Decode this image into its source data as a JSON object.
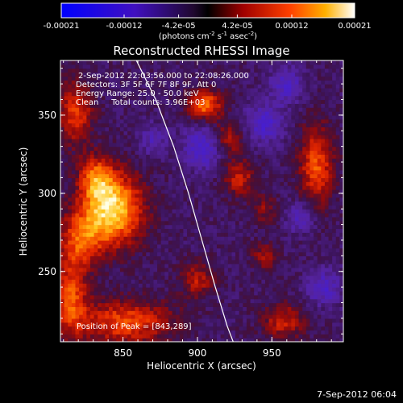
{
  "chart_data": {
    "type": "heatmap",
    "title": "Reconstructed RHESSI Image",
    "xlabel": "Heliocentric X (arcsec)",
    "ylabel": "Heliocentric Y (arcsec)",
    "xlim": [
      808,
      998
    ],
    "ylim": [
      205,
      385
    ],
    "xticks": [
      850,
      900,
      950
    ],
    "yticks": [
      250,
      300,
      350
    ],
    "colorbar": {
      "range": [
        -0.00021,
        0.00021
      ],
      "tick_labels": [
        "-0.00021",
        "-0.00012",
        "-4.2e-05",
        "4.2e-05",
        "0.00012",
        "0.00021"
      ],
      "tick_values": [
        -0.00021,
        -0.00012,
        -4.2e-05,
        4.2e-05,
        0.00012,
        0.00021
      ],
      "label_main": "(photons cm",
      "label_sup1": "-2",
      "label_mid": " s",
      "label_sup2": "-1",
      "label_tail": " asec",
      "label_sup3": "-2",
      "label_end": ")"
    },
    "annotations": [
      "2-Sep-2012 22:03:56.000 to 22:08:26.000",
      "Detectors: 3F 5F 6F 7F 8F 9F, Att 0",
      "Energy Range: 25.0 - 50.0 keV",
      "Clean     Total counts: 3.96E+03"
    ],
    "peak_label": "Position of Peak = [843,289]",
    "peak_position": [
      843,
      289
    ],
    "limb_curve": [
      [
        859,
        385
      ],
      [
        872,
        360
      ],
      [
        884,
        330
      ],
      [
        894,
        300
      ],
      [
        903,
        270
      ],
      [
        912,
        240
      ],
      [
        920,
        215
      ],
      [
        924,
        205
      ]
    ],
    "bright_sources": [
      {
        "x": 843,
        "y": 290,
        "sx": 14,
        "sy": 16,
        "amp": 1.0
      },
      {
        "x": 832,
        "y": 310,
        "sx": 8,
        "sy": 10,
        "amp": 0.55
      },
      {
        "x": 822,
        "y": 272,
        "sx": 10,
        "sy": 12,
        "amp": 0.55
      },
      {
        "x": 818,
        "y": 352,
        "sx": 8,
        "sy": 14,
        "amp": 0.55
      },
      {
        "x": 815,
        "y": 235,
        "sx": 8,
        "sy": 18,
        "amp": 0.6
      },
      {
        "x": 852,
        "y": 218,
        "sx": 22,
        "sy": 10,
        "amp": 0.6
      },
      {
        "x": 905,
        "y": 357,
        "sx": 8,
        "sy": 7,
        "amp": 0.7
      },
      {
        "x": 920,
        "y": 335,
        "sx": 8,
        "sy": 8,
        "amp": 0.45
      },
      {
        "x": 928,
        "y": 310,
        "sx": 8,
        "sy": 8,
        "amp": 0.45
      },
      {
        "x": 980,
        "y": 318,
        "sx": 8,
        "sy": 18,
        "amp": 0.6
      },
      {
        "x": 958,
        "y": 218,
        "sx": 10,
        "sy": 8,
        "amp": 0.45
      },
      {
        "x": 900,
        "y": 245,
        "sx": 8,
        "sy": 8,
        "amp": 0.4
      },
      {
        "x": 945,
        "y": 260,
        "sx": 6,
        "sy": 6,
        "amp": 0.35
      },
      {
        "x": 945,
        "y": 290,
        "sx": 6,
        "sy": 6,
        "amp": 0.3
      }
    ],
    "negative_sources": [
      {
        "x": 905,
        "y": 330,
        "sx": 10,
        "sy": 10,
        "amp": 0.5
      },
      {
        "x": 945,
        "y": 345,
        "sx": 9,
        "sy": 9,
        "amp": 0.45
      },
      {
        "x": 960,
        "y": 370,
        "sx": 8,
        "sy": 8,
        "amp": 0.4
      },
      {
        "x": 985,
        "y": 240,
        "sx": 8,
        "sy": 8,
        "amp": 0.4
      },
      {
        "x": 970,
        "y": 285,
        "sx": 7,
        "sy": 7,
        "amp": 0.35
      },
      {
        "x": 870,
        "y": 335,
        "sx": 7,
        "sy": 7,
        "amp": 0.3
      }
    ]
  },
  "footer": {
    "date": "7-Sep-2012 06:04"
  }
}
